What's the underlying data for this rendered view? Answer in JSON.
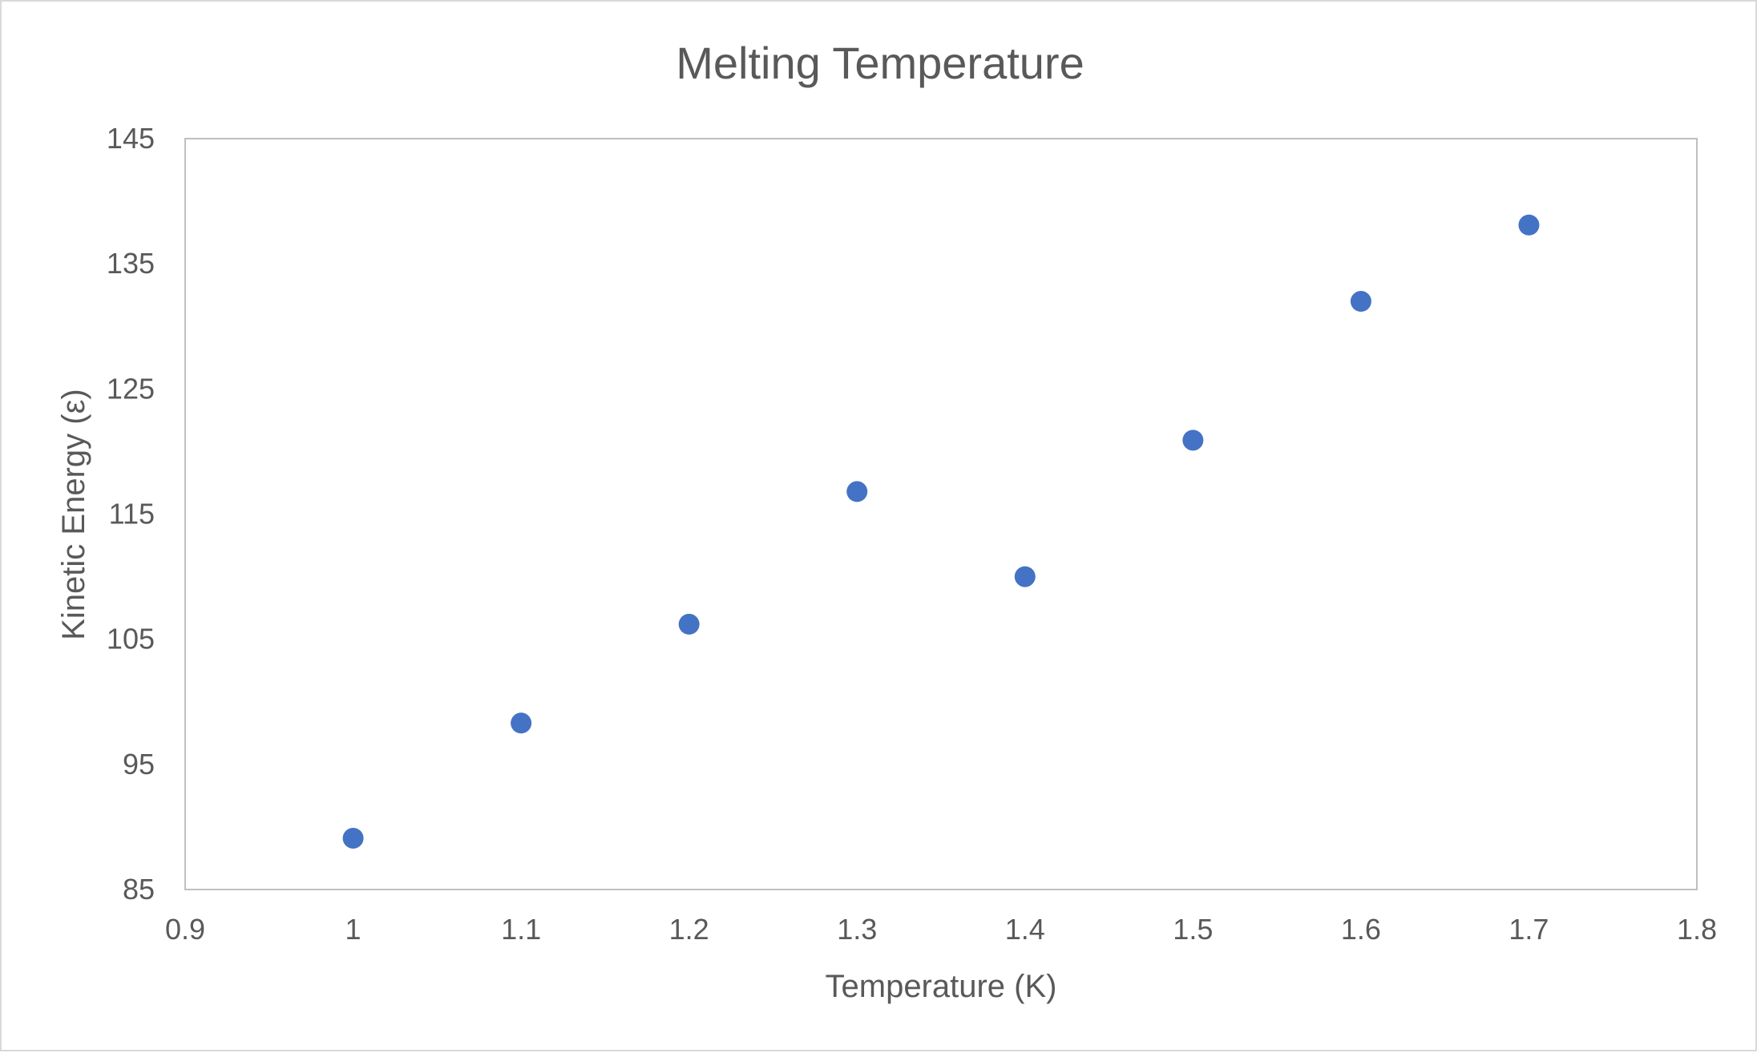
{
  "chart_data": {
    "type": "scatter",
    "title": "Melting Temperature",
    "xlabel": "Temperature (K)",
    "ylabel": "Kinetic Energy (ε)",
    "xlim": [
      0.9,
      1.8
    ],
    "ylim": [
      85,
      145
    ],
    "x_ticks": [
      0.9,
      1.0,
      1.1,
      1.2,
      1.3,
      1.4,
      1.5,
      1.6,
      1.7,
      1.8
    ],
    "x_tick_labels": [
      "0.9",
      "1",
      "1.1",
      "1.2",
      "1.3",
      "1.4",
      "1.5",
      "1.6",
      "1.7",
      "1.8"
    ],
    "y_ticks": [
      85,
      95,
      105,
      115,
      125,
      135,
      145
    ],
    "y_tick_labels": [
      "85",
      "95",
      "105",
      "115",
      "125",
      "135",
      "145"
    ],
    "grid": false,
    "legend": "none",
    "series": [
      {
        "color": "#4472c4",
        "x": [
          1.0,
          1.1,
          1.2,
          1.3,
          1.4,
          1.5,
          1.6,
          1.7
        ],
        "y": [
          89.1,
          98.3,
          106.2,
          116.8,
          110.0,
          120.9,
          132.0,
          138.1
        ]
      }
    ]
  },
  "colors": {
    "text": "#595959",
    "plot_border": "#bfbfbf",
    "frame_border": "#d9d9d9",
    "marker": "#4472c4"
  }
}
